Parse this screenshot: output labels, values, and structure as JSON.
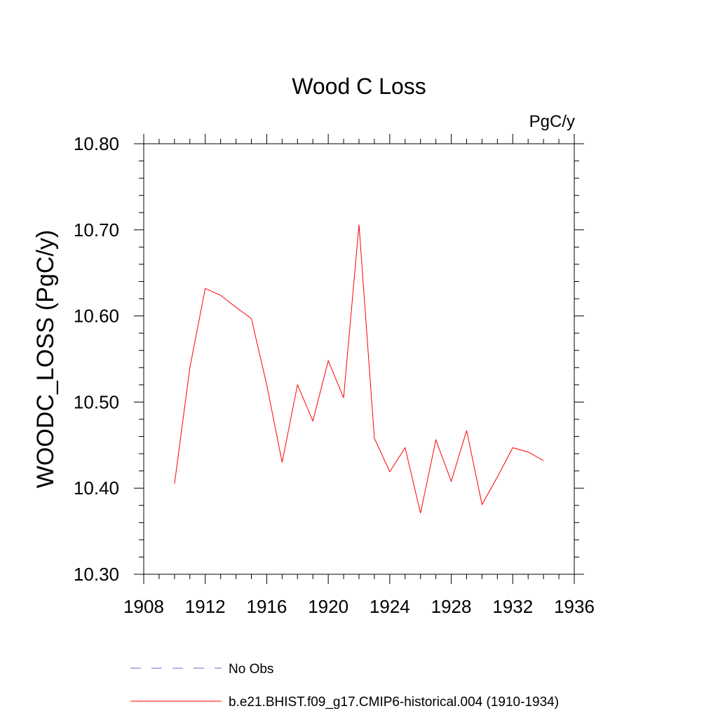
{
  "chart_data": {
    "type": "line",
    "title": "Wood C Loss",
    "units_label": "PgC/y",
    "ylabel": "WOODC_LOSS  (PgC/y)",
    "xlabel": "",
    "xlim": [
      1908,
      1936
    ],
    "ylim": [
      10.3,
      10.8
    ],
    "x_ticks": [
      "1908",
      "1912",
      "1916",
      "1920",
      "1924",
      "1928",
      "1932",
      "1936"
    ],
    "y_ticks": [
      "10.30",
      "10.40",
      "10.50",
      "10.60",
      "10.70",
      "10.80"
    ],
    "grid": false,
    "legend_position": "bottom",
    "series": [
      {
        "name": "b.e21.BHIST.f09_g17.CMIP6-historical.004 (1910-1934)",
        "color": "#ff0000",
        "style": "solid",
        "x": [
          1910,
          1911,
          1912,
          1913,
          1914,
          1915,
          1916,
          1917,
          1918,
          1919,
          1920,
          1921,
          1922,
          1923,
          1924,
          1925,
          1926,
          1927,
          1928,
          1929,
          1930,
          1931,
          1932,
          1933,
          1934
        ],
        "y": [
          10.405,
          10.54,
          10.632,
          10.624,
          10.61,
          10.597,
          10.52,
          10.43,
          10.52,
          10.478,
          10.548,
          10.505,
          10.706,
          10.458,
          10.419,
          10.447,
          10.371,
          10.456,
          10.408,
          10.467,
          10.381,
          10.413,
          10.447,
          10.442,
          10.432
        ]
      }
    ],
    "legend": [
      {
        "name": "No Obs",
        "color": "#6b6bd6",
        "style": "dashed"
      },
      {
        "name": "b.e21.BHIST.f09_g17.CMIP6-historical.004 (1910-1934)",
        "color": "#ff0000",
        "style": "solid"
      }
    ]
  }
}
